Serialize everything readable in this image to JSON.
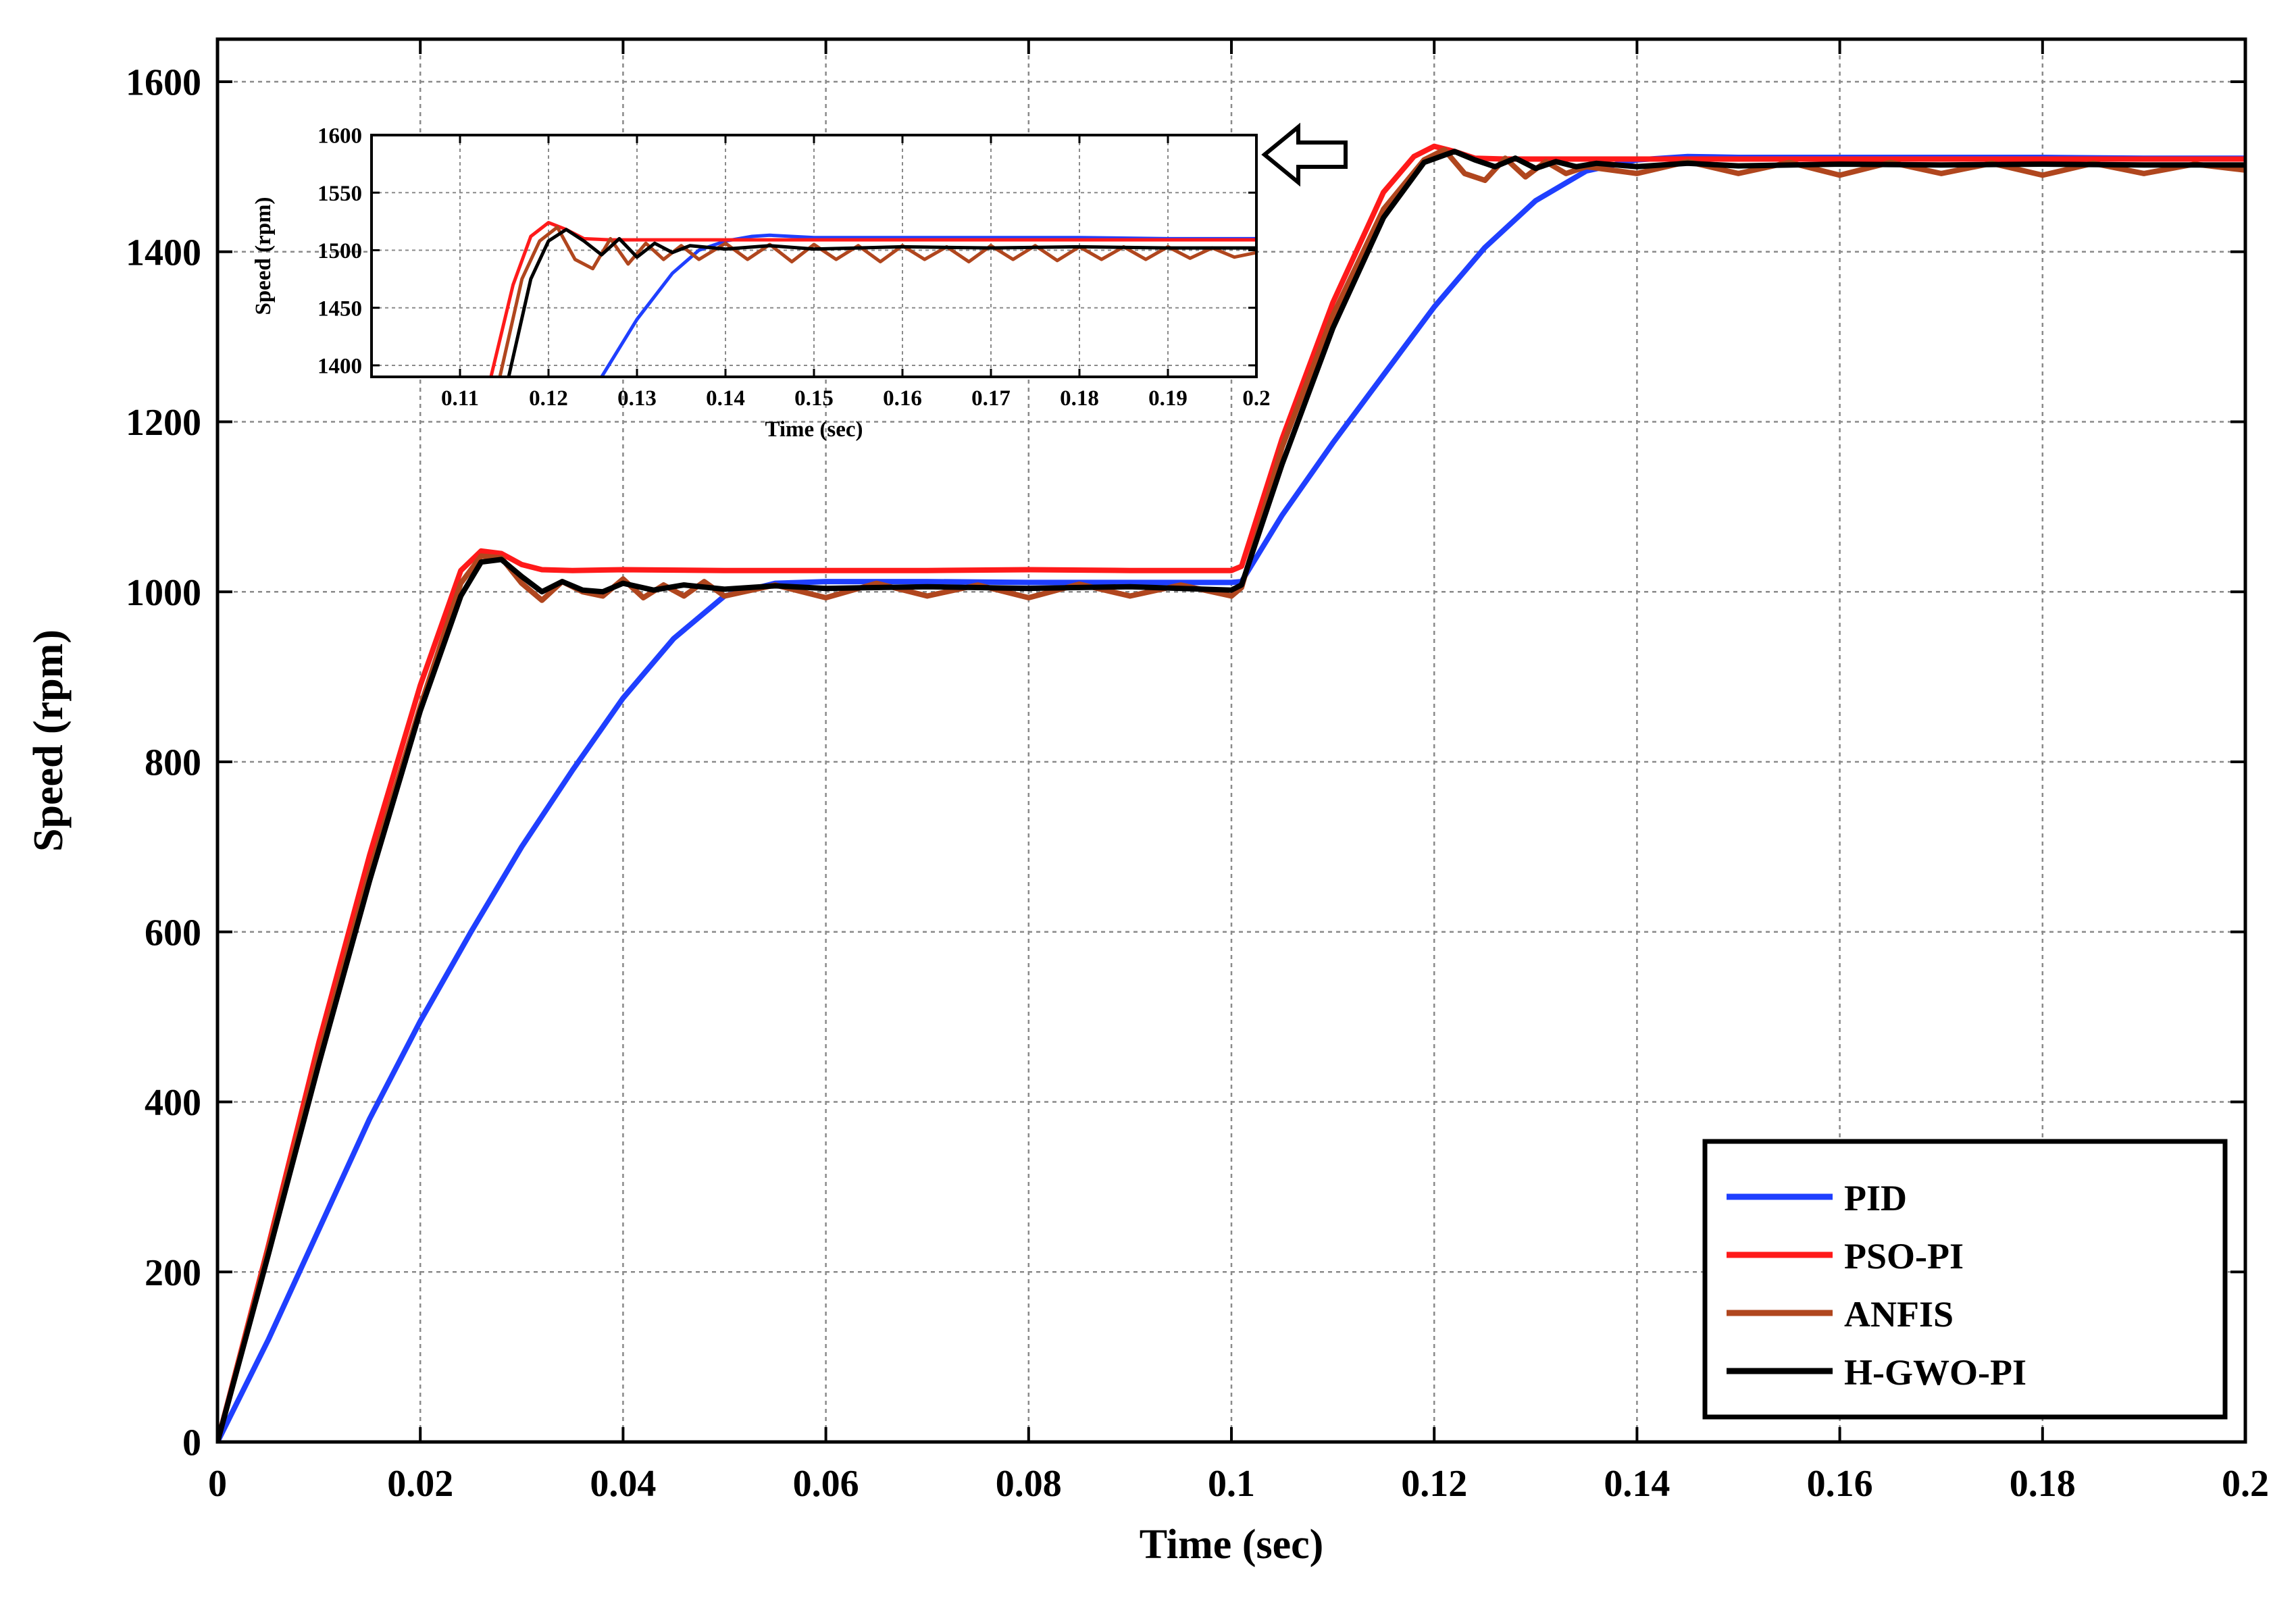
{
  "chart_data": [
    {
      "type": "line",
      "title": "",
      "xlabel": "Time (sec)",
      "ylabel": "Speed (rpm)",
      "xlim": [
        0,
        0.2
      ],
      "ylim": [
        0,
        1650
      ],
      "xticks": [
        0,
        0.02,
        0.04,
        0.06,
        0.08,
        0.1,
        0.12,
        0.14,
        0.16,
        0.18,
        0.2
      ],
      "xtick_labels": [
        "0",
        "0.02",
        "0.04",
        "0.06",
        "0.08",
        "0.1",
        "0.12",
        "0.14",
        "0.16",
        "0.18",
        "0.2"
      ],
      "yticks": [
        0,
        200,
        400,
        600,
        800,
        1000,
        1200,
        1400,
        1600
      ],
      "ytick_labels": [
        "0",
        "200",
        "400",
        "600",
        "800",
        "1000",
        "1200",
        "1400",
        "1600"
      ],
      "grid": true,
      "legend_position": "bottom-right",
      "series": [
        {
          "name": "PID",
          "color": "#1f3fff",
          "x": [
            0,
            0.005,
            0.01,
            0.015,
            0.02,
            0.025,
            0.03,
            0.035,
            0.04,
            0.045,
            0.05,
            0.055,
            0.06,
            0.07,
            0.08,
            0.09,
            0.1,
            0.101,
            0.105,
            0.11,
            0.115,
            0.12,
            0.125,
            0.13,
            0.135,
            0.14,
            0.145,
            0.15,
            0.16,
            0.17,
            0.18,
            0.19,
            0.2
          ],
          "y": [
            0,
            120,
            250,
            380,
            495,
            600,
            700,
            790,
            875,
            945,
            995,
            1010,
            1012,
            1012,
            1011,
            1011,
            1011,
            1012,
            1090,
            1175,
            1255,
            1335,
            1405,
            1460,
            1495,
            1508,
            1512,
            1511,
            1511,
            1511,
            1511,
            1510,
            1510
          ]
        },
        {
          "name": "PSO-PI",
          "color": "#ff1a1a",
          "x": [
            0,
            0.005,
            0.01,
            0.015,
            0.02,
            0.024,
            0.026,
            0.028,
            0.03,
            0.032,
            0.035,
            0.04,
            0.05,
            0.06,
            0.07,
            0.08,
            0.09,
            0.1,
            0.101,
            0.105,
            0.11,
            0.115,
            0.118,
            0.12,
            0.122,
            0.124,
            0.127,
            0.13,
            0.14,
            0.16,
            0.18,
            0.2
          ],
          "y": [
            0,
            230,
            470,
            690,
            890,
            1025,
            1048,
            1045,
            1032,
            1026,
            1025,
            1026,
            1025,
            1025,
            1025,
            1026,
            1025,
            1025,
            1030,
            1180,
            1340,
            1470,
            1512,
            1524,
            1518,
            1510,
            1509,
            1509,
            1509,
            1509,
            1509,
            1509
          ]
        },
        {
          "name": "ANFIS",
          "color": "#b0461e",
          "x": [
            0,
            0.005,
            0.01,
            0.015,
            0.02,
            0.024,
            0.026,
            0.028,
            0.03,
            0.032,
            0.034,
            0.036,
            0.038,
            0.04,
            0.042,
            0.044,
            0.046,
            0.048,
            0.05,
            0.055,
            0.06,
            0.065,
            0.07,
            0.075,
            0.08,
            0.085,
            0.09,
            0.095,
            0.1,
            0.101,
            0.105,
            0.11,
            0.115,
            0.119,
            0.121,
            0.123,
            0.125,
            0.127,
            0.129,
            0.131,
            0.133,
            0.135,
            0.14,
            0.145,
            0.15,
            0.155,
            0.16,
            0.165,
            0.17,
            0.175,
            0.18,
            0.185,
            0.19,
            0.195,
            0.2
          ],
          "y": [
            0,
            225,
            455,
            670,
            865,
            1010,
            1042,
            1040,
            1010,
            990,
            1012,
            1000,
            995,
            1015,
            993,
            1008,
            995,
            1012,
            995,
            1008,
            993,
            1010,
            995,
            1008,
            993,
            1009,
            995,
            1008,
            995,
            1005,
            1170,
            1325,
            1450,
            1508,
            1520,
            1492,
            1484,
            1510,
            1488,
            1506,
            1492,
            1500,
            1492,
            1506,
            1492,
            1505,
            1490,
            1505,
            1492,
            1504,
            1490,
            1504,
            1492,
            1503,
            1496
          ]
        },
        {
          "name": "H-GWO-PI",
          "color": "#000000",
          "x": [
            0,
            0.005,
            0.01,
            0.015,
            0.02,
            0.024,
            0.026,
            0.028,
            0.03,
            0.032,
            0.034,
            0.036,
            0.038,
            0.04,
            0.043,
            0.046,
            0.05,
            0.055,
            0.06,
            0.07,
            0.08,
            0.09,
            0.1,
            0.101,
            0.105,
            0.11,
            0.115,
            0.119,
            0.122,
            0.124,
            0.126,
            0.128,
            0.13,
            0.132,
            0.134,
            0.136,
            0.14,
            0.145,
            0.15,
            0.16,
            0.17,
            0.18,
            0.19,
            0.2
          ],
          "y": [
            0,
            220,
            445,
            660,
            860,
            995,
            1035,
            1038,
            1018,
            1000,
            1012,
            1002,
            1000,
            1010,
            1002,
            1008,
            1003,
            1007,
            1004,
            1006,
            1004,
            1006,
            1002,
            1008,
            1150,
            1310,
            1440,
            1505,
            1518,
            1508,
            1500,
            1510,
            1498,
            1506,
            1500,
            1504,
            1500,
            1504,
            1501,
            1503,
            1502,
            1503,
            1502,
            1502
          ]
        }
      ]
    },
    {
      "type": "line",
      "title": "",
      "xlabel": "Time (sec)",
      "ylabel": "Speed (rpm)",
      "xlim": [
        0.1,
        0.2
      ],
      "ylim": [
        1390,
        1600
      ],
      "xticks": [
        0.11,
        0.12,
        0.13,
        0.14,
        0.15,
        0.16,
        0.17,
        0.18,
        0.19,
        0.2
      ],
      "xtick_labels": [
        "0.11",
        "0.12",
        "0.13",
        "0.14",
        "0.15",
        "0.16",
        "0.17",
        "0.18",
        "0.19",
        "0.2"
      ],
      "yticks": [
        1400,
        1450,
        1500,
        1550,
        1600
      ],
      "ytick_labels": [
        "1400",
        "1450",
        "1500",
        "1550",
        "1600"
      ],
      "grid": true,
      "series": [
        {
          "name": "PID",
          "color": "#1f3fff",
          "x": [
            0.126,
            0.13,
            0.134,
            0.137,
            0.14,
            0.143,
            0.145,
            0.15,
            0.16,
            0.17,
            0.18,
            0.19,
            0.2
          ],
          "y": [
            1390,
            1440,
            1480,
            1500,
            1508,
            1512,
            1513,
            1511,
            1511,
            1511,
            1511,
            1510,
            1510
          ]
        },
        {
          "name": "PSO-PI",
          "color": "#ff1a1a",
          "x": [
            0.1135,
            0.116,
            0.118,
            0.12,
            0.122,
            0.124,
            0.127,
            0.13,
            0.14,
            0.15,
            0.16,
            0.17,
            0.18,
            0.19,
            0.2
          ],
          "y": [
            1390,
            1470,
            1512,
            1524,
            1518,
            1510,
            1509,
            1509,
            1509,
            1509,
            1509,
            1509,
            1509,
            1509,
            1509
          ]
        },
        {
          "name": "ANFIS",
          "color": "#b0461e",
          "x": [
            0.1145,
            0.117,
            0.119,
            0.121,
            0.123,
            0.125,
            0.127,
            0.129,
            0.131,
            0.133,
            0.135,
            0.137,
            0.14,
            0.1425,
            0.145,
            0.1475,
            0.15,
            0.1525,
            0.155,
            0.1575,
            0.16,
            0.1625,
            0.165,
            0.1675,
            0.17,
            0.1725,
            0.175,
            0.1775,
            0.18,
            0.1825,
            0.185,
            0.1875,
            0.19,
            0.1925,
            0.195,
            0.1975,
            0.2
          ],
          "y": [
            1390,
            1475,
            1508,
            1520,
            1492,
            1484,
            1510,
            1488,
            1506,
            1492,
            1504,
            1492,
            1506,
            1492,
            1505,
            1490,
            1505,
            1492,
            1504,
            1490,
            1504,
            1492,
            1503,
            1490,
            1504,
            1492,
            1504,
            1491,
            1503,
            1492,
            1503,
            1492,
            1503,
            1493,
            1502,
            1494,
            1498
          ]
        },
        {
          "name": "H-GWO-PI",
          "color": "#000000",
          "x": [
            0.1155,
            0.118,
            0.12,
            0.122,
            0.124,
            0.126,
            0.128,
            0.13,
            0.132,
            0.134,
            0.136,
            0.14,
            0.145,
            0.15,
            0.16,
            0.17,
            0.18,
            0.19,
            0.2
          ],
          "y": [
            1390,
            1475,
            1508,
            1518,
            1508,
            1496,
            1510,
            1494,
            1506,
            1498,
            1504,
            1501,
            1504,
            1501,
            1503,
            1502,
            1503,
            1502,
            1502
          ]
        }
      ]
    }
  ]
}
